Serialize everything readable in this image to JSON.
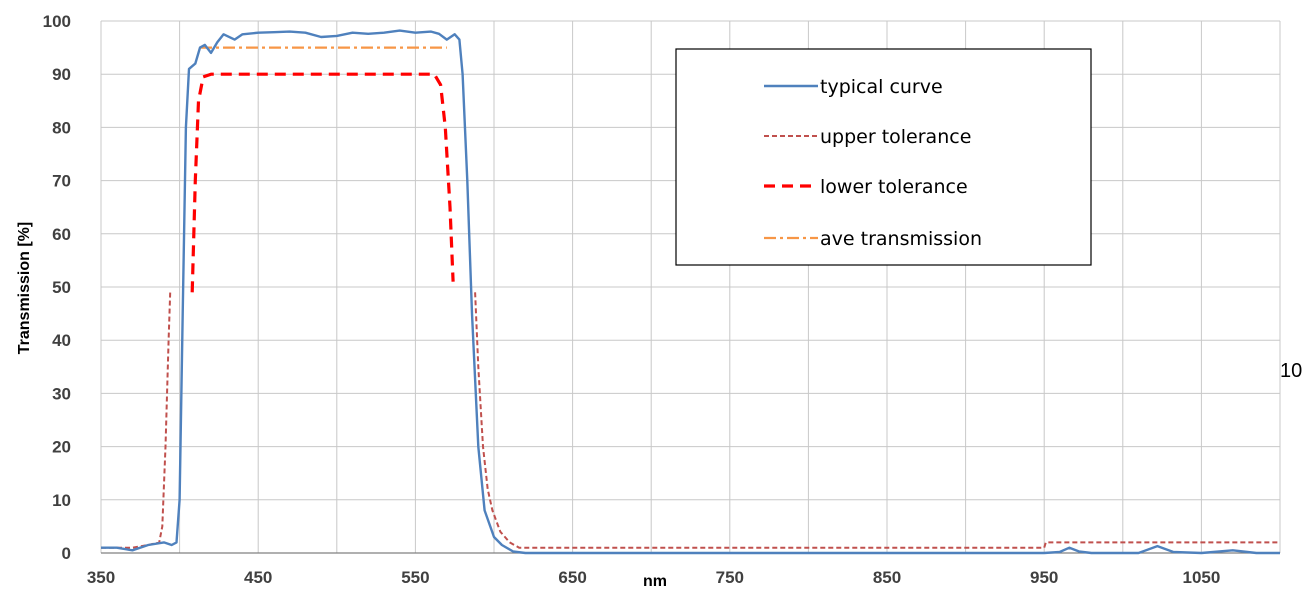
{
  "chart_data": {
    "type": "line",
    "xlabel": "nm",
    "ylabel": "Transmission [%]",
    "xlim": [
      350,
      1100
    ],
    "ylim": [
      0,
      100
    ],
    "xticks": [
      350,
      450,
      550,
      650,
      750,
      850,
      950,
      1050
    ],
    "yticks": [
      0,
      10,
      20,
      30,
      40,
      50,
      60,
      70,
      80,
      90,
      100
    ],
    "grid": true,
    "legend_position": "top-right",
    "series": [
      {
        "name": "typical curve",
        "color": "#4f81bd",
        "style": "solid",
        "points": [
          [
            350,
            1
          ],
          [
            360,
            1
          ],
          [
            370,
            0.5
          ],
          [
            380,
            1.5
          ],
          [
            390,
            2
          ],
          [
            395,
            1.5
          ],
          [
            398,
            2
          ],
          [
            400,
            10
          ],
          [
            402,
            45
          ],
          [
            404,
            80
          ],
          [
            406,
            91
          ],
          [
            408,
            91.5
          ],
          [
            410,
            92
          ],
          [
            413,
            95
          ],
          [
            416,
            95.5
          ],
          [
            420,
            94
          ],
          [
            424,
            96
          ],
          [
            428,
            97.5
          ],
          [
            435,
            96.5
          ],
          [
            440,
            97.5
          ],
          [
            450,
            97.8
          ],
          [
            460,
            97.9
          ],
          [
            470,
            98
          ],
          [
            480,
            97.8
          ],
          [
            490,
            97
          ],
          [
            500,
            97.2
          ],
          [
            510,
            97.8
          ],
          [
            520,
            97.6
          ],
          [
            530,
            97.8
          ],
          [
            540,
            98.2
          ],
          [
            550,
            97.8
          ],
          [
            560,
            98
          ],
          [
            565,
            97.6
          ],
          [
            570,
            96.5
          ],
          [
            575,
            97.5
          ],
          [
            578,
            96.5
          ],
          [
            580,
            90
          ],
          [
            583,
            70
          ],
          [
            586,
            45
          ],
          [
            590,
            20
          ],
          [
            594,
            8
          ],
          [
            600,
            3
          ],
          [
            605,
            1.5
          ],
          [
            612,
            0.3
          ],
          [
            620,
            0
          ],
          [
            700,
            0
          ],
          [
            800,
            0
          ],
          [
            900,
            0
          ],
          [
            950,
            0
          ],
          [
            960,
            0.2
          ],
          [
            966,
            1
          ],
          [
            972,
            0.3
          ],
          [
            980,
            0
          ],
          [
            1010,
            0
          ],
          [
            1022,
            1.3
          ],
          [
            1032,
            0.2
          ],
          [
            1050,
            0
          ],
          [
            1070,
            0.5
          ],
          [
            1085,
            0
          ],
          [
            1100,
            0
          ]
        ]
      },
      {
        "name": "upper tolerance",
        "color": "#c0504d",
        "style": "dashed",
        "segments": [
          [
            [
              350,
              1
            ],
            [
              370,
              1
            ],
            [
              380,
              1.5
            ],
            [
              387,
              2
            ],
            [
              389,
              5
            ],
            [
              391,
              20
            ],
            [
              393,
              40
            ],
            [
              394,
              49
            ]
          ],
          [
            [
              588,
              49
            ],
            [
              590,
              35
            ],
            [
              593,
              20
            ],
            [
              596,
              12
            ],
            [
              599,
              8
            ],
            [
              604,
              4
            ],
            [
              610,
              2
            ],
            [
              616,
              1
            ],
            [
              630,
              1
            ],
            [
              700,
              1
            ],
            [
              800,
              1
            ],
            [
              900,
              1
            ],
            [
              950,
              1
            ],
            [
              951,
              2
            ],
            [
              1000,
              2
            ],
            [
              1050,
              2
            ],
            [
              1100,
              2
            ]
          ]
        ]
      },
      {
        "name": "lower tolerance",
        "color": "#ff0000",
        "style": "dashed-bold",
        "segments": [
          [
            [
              408,
              49
            ],
            [
              410,
              70
            ],
            [
              412,
              85
            ],
            [
              415,
              89.5
            ],
            [
              420,
              90
            ],
            [
              450,
              90
            ],
            [
              500,
              90
            ],
            [
              550,
              90
            ],
            [
              562,
              90
            ],
            [
              566,
              88
            ],
            [
              569,
              80
            ],
            [
              572,
              65
            ],
            [
              574,
              51
            ]
          ]
        ]
      },
      {
        "name": "ave transmission",
        "color": "#f79646",
        "style": "dash-dot",
        "segments": [
          [
            [
              413,
              95
            ],
            [
              570,
              95
            ]
          ]
        ]
      }
    ]
  },
  "margin_note": "10"
}
